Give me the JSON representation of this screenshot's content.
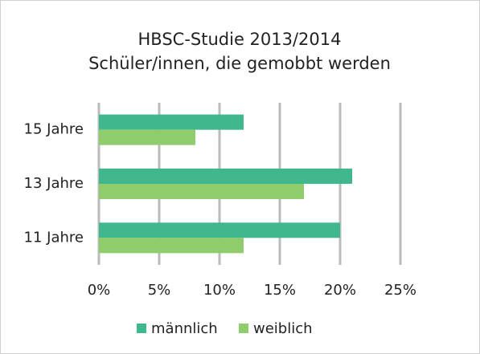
{
  "chart_data": {
    "type": "hbar",
    "title": "HBSC-Studie 2013/2014",
    "subtitle": "Schüler/innen, die gemobbt werden",
    "categories": [
      "15 Jahre",
      "13 Jahre",
      "11 Jahre"
    ],
    "series": [
      {
        "name": "männlich",
        "color": "#3fb88d",
        "values": [
          12,
          21,
          20
        ]
      },
      {
        "name": "weiblich",
        "color": "#8fcc6c",
        "values": [
          8,
          17,
          12
        ]
      }
    ],
    "xlim": [
      0,
      25
    ],
    "xticks": [
      {
        "value": 0,
        "label": "0%"
      },
      {
        "value": 5,
        "label": "5%"
      },
      {
        "value": 10,
        "label": "10%"
      },
      {
        "value": 15,
        "label": "15%"
      },
      {
        "value": 20,
        "label": "20%"
      },
      {
        "value": 25,
        "label": "25%"
      }
    ],
    "grid": true,
    "legend": "bottom"
  }
}
